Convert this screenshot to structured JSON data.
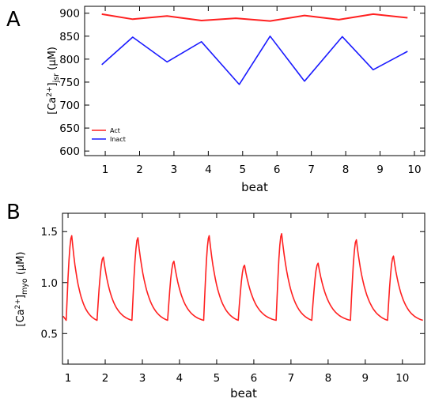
{
  "colors": {
    "act": "#ff2020",
    "inact": "#1a1aff",
    "axis": "#000000"
  },
  "chart_data": [
    {
      "panel_label": "A",
      "type": "line",
      "xlabel": "beat",
      "ylabel": {
        "prefix": "[Ca",
        "sup": "2+",
        "bracket": "]",
        "sub": "jsr",
        "unit": " (μM)"
      },
      "xlim": [
        0.4,
        10.3
      ],
      "ylim": [
        590,
        915
      ],
      "xticks": [
        1,
        2,
        3,
        4,
        5,
        6,
        7,
        8,
        9,
        10
      ],
      "xtick_labels": [
        "1",
        "2",
        "3",
        "4",
        "5",
        "6",
        "7",
        "8",
        "9",
        "10"
      ],
      "yticks": [
        600,
        650,
        700,
        750,
        800,
        850,
        900
      ],
      "ytick_labels": [
        "600",
        "650",
        "700",
        "750",
        "800",
        "850",
        "900"
      ],
      "legend_position": "bottom-left",
      "series": [
        {
          "name": "Act",
          "color": "#ff2020",
          "x": [
            0.9,
            1.8,
            2.8,
            3.8,
            4.8,
            5.8,
            6.8,
            7.8,
            8.8,
            9.8
          ],
          "y": [
            898,
            887,
            894,
            884,
            889,
            883,
            895,
            886,
            898,
            890
          ]
        },
        {
          "name": "Inact",
          "color": "#1a1aff",
          "x": [
            0.9,
            1.8,
            2.8,
            3.8,
            4.9,
            5.8,
            6.8,
            7.9,
            8.8,
            9.8
          ],
          "y": [
            788,
            848,
            794,
            838,
            745,
            850,
            752,
            849,
            777,
            817
          ]
        }
      ]
    },
    {
      "panel_label": "B",
      "type": "line",
      "xlabel": "beat",
      "ylabel": {
        "prefix": "[Ca",
        "sup": "2+",
        "bracket": "]",
        "sub": "myo",
        "unit": " (μM)"
      },
      "xlim": [
        0.85,
        10.6
      ],
      "ylim": [
        0.2,
        1.68
      ],
      "xticks": [
        1,
        2,
        3,
        4,
        5,
        6,
        7,
        8,
        9,
        10
      ],
      "xtick_labels": [
        "1",
        "2",
        "3",
        "4",
        "5",
        "6",
        "7",
        "8",
        "9",
        "10"
      ],
      "yticks": [
        0.5,
        1.0,
        1.5
      ],
      "ytick_labels": [
        "0.5",
        "1.0",
        "1.5"
      ],
      "series": [
        {
          "name": "",
          "color": "#ff2020",
          "start_value": 0.67,
          "end_value": 0.63,
          "beats": [
            {
              "onset": 0.95,
              "peak_time": 1.1,
              "peak": 1.46,
              "trough": 0.63
            },
            {
              "onset": 1.78,
              "peak_time": 1.95,
              "peak": 1.25,
              "trough": 0.63
            },
            {
              "onset": 2.72,
              "peak_time": 2.88,
              "peak": 1.44,
              "trough": 0.63
            },
            {
              "onset": 3.68,
              "peak_time": 3.85,
              "peak": 1.21,
              "trough": 0.63
            },
            {
              "onset": 4.65,
              "peak_time": 4.8,
              "peak": 1.46,
              "trough": 0.63
            },
            {
              "onset": 5.58,
              "peak_time": 5.75,
              "peak": 1.17,
              "trough": 0.63
            },
            {
              "onset": 6.6,
              "peak_time": 6.75,
              "peak": 1.48,
              "trough": 0.63
            },
            {
              "onset": 7.56,
              "peak_time": 7.73,
              "peak": 1.19,
              "trough": 0.63
            },
            {
              "onset": 8.6,
              "peak_time": 8.76,
              "peak": 1.42,
              "trough": 0.63
            },
            {
              "onset": 9.6,
              "peak_time": 9.76,
              "peak": 1.26,
              "trough": 0.63
            }
          ]
        }
      ]
    }
  ]
}
